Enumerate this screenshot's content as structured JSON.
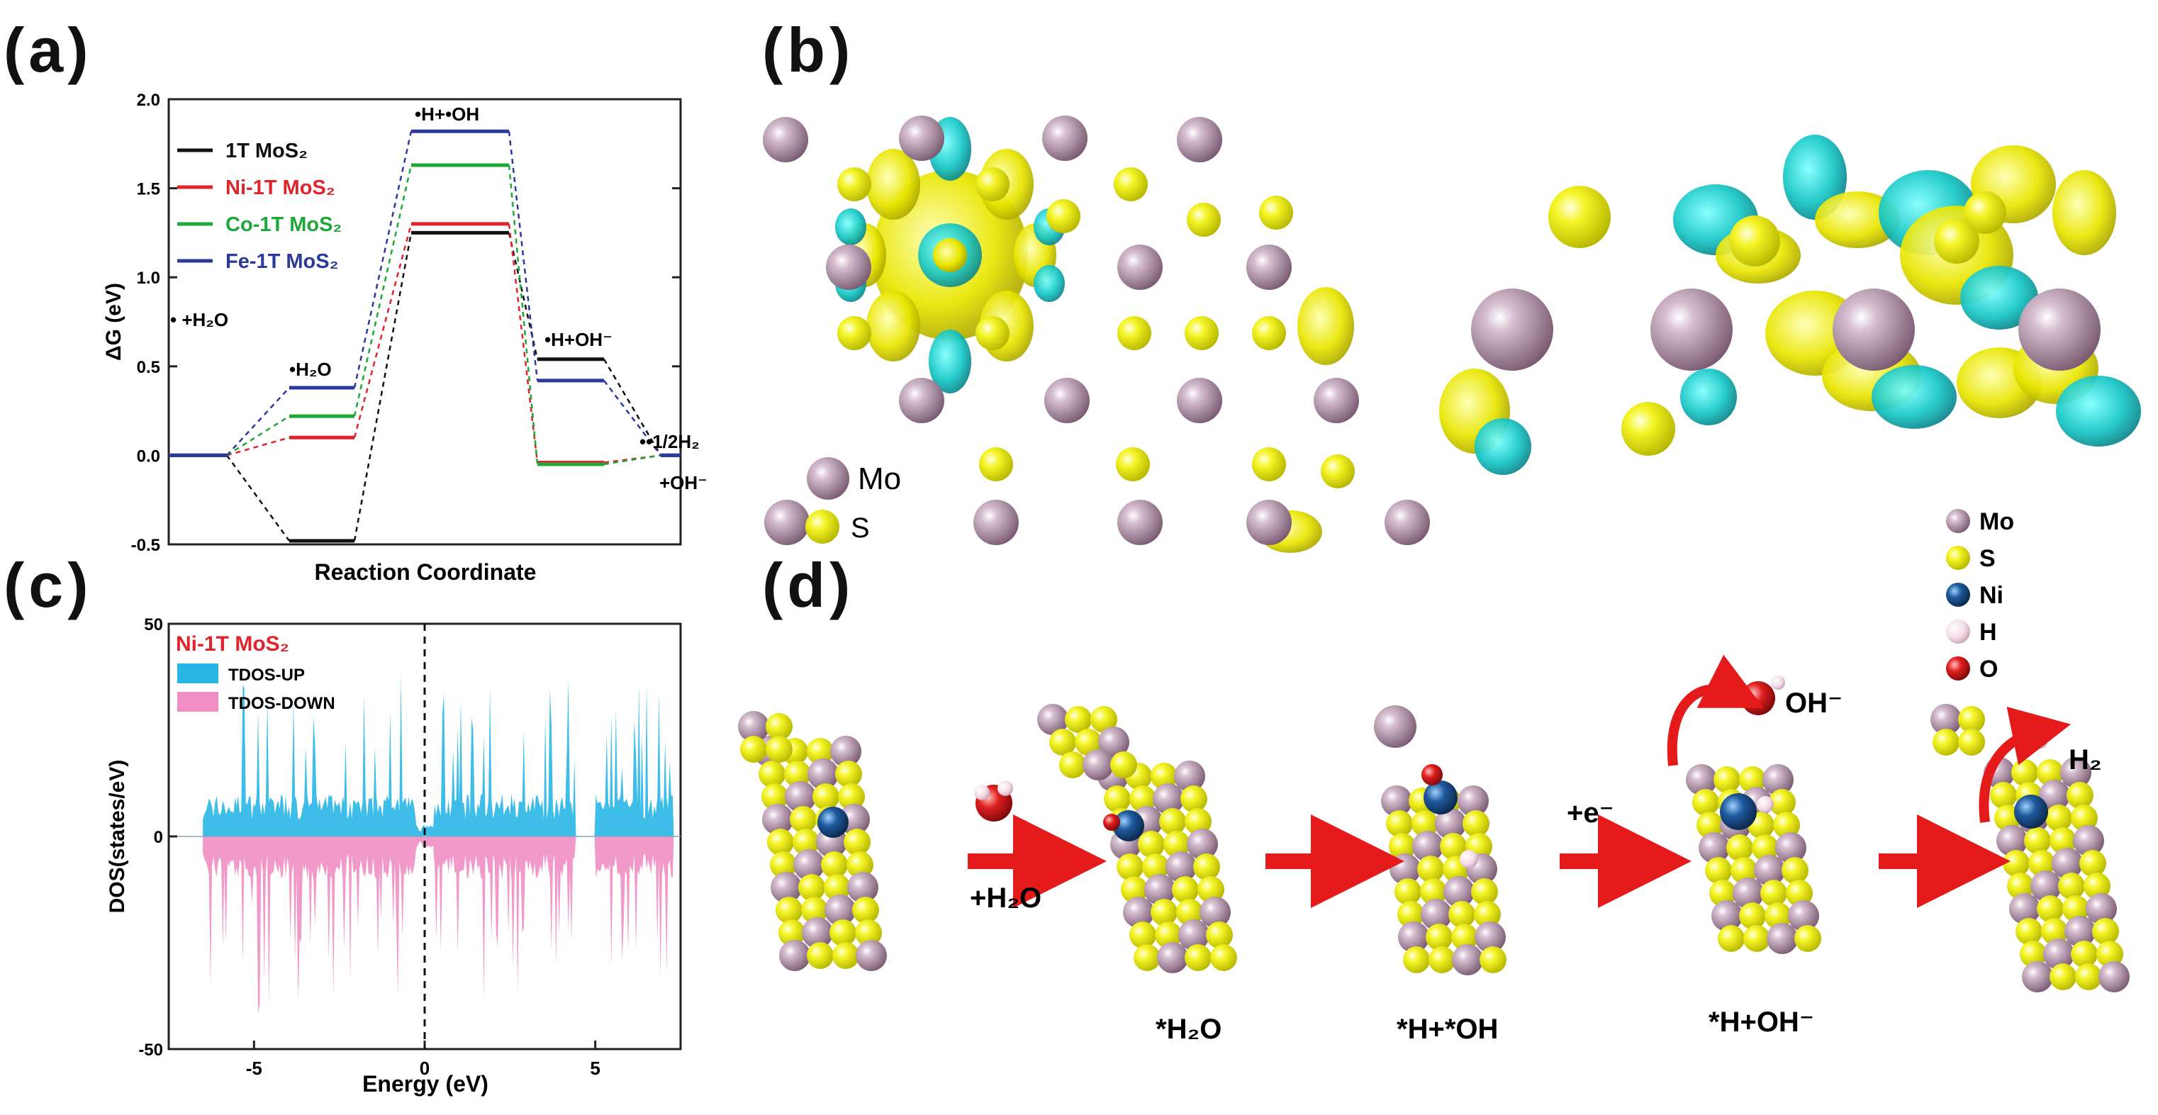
{
  "figure": {
    "panel_labels": [
      "(a)",
      "(b)",
      "(c)",
      "(d)"
    ]
  },
  "chart_data": [
    {
      "panel": "(a)",
      "type": "line",
      "xlabel": "Reaction Coordinate",
      "ylabel": "ΔG (eV)",
      "ylim": [
        -0.5,
        2.0
      ],
      "yticks": [
        "-0.5",
        "0.0",
        "0.5",
        "1.0",
        "1.5",
        "2.0"
      ],
      "steps": [
        "* +H2O",
        "*H2O",
        "*H+*OH",
        "*H+OH-",
        "*+1/2H2 +OH-"
      ],
      "step_labels": [
        {
          "text": "• +H₂O"
        },
        {
          "text": "•H₂O"
        },
        {
          "text": "•H+•OH"
        },
        {
          "text": "•H+OH⁻"
        },
        {
          "text": "••1/2H₂"
        },
        {
          "text": "+OH⁻"
        }
      ],
      "series": [
        {
          "name": "1T MoS₂",
          "color": "#111111",
          "values": [
            0.0,
            -0.48,
            1.25,
            0.54,
            0.0
          ]
        },
        {
          "name": "Ni-1T MoS₂",
          "color": "#e0242c",
          "values": [
            0.0,
            0.1,
            1.3,
            -0.04,
            0.0
          ]
        },
        {
          "name": "Co-1T MoS₂",
          "color": "#1ea83a",
          "values": [
            0.0,
            0.22,
            1.63,
            -0.05,
            0.0
          ]
        },
        {
          "name": "Fe-1T MoS₂",
          "color": "#2b3a9a",
          "values": [
            0.0,
            0.38,
            1.82,
            0.42,
            0.0
          ]
        }
      ],
      "legend_title_colors": [
        "#111111",
        "#e0242c",
        "#1ea83a",
        "#2b3a9a"
      ],
      "legend_placement": "top-left"
    },
    {
      "panel": "(c)",
      "type": "area",
      "title": "Ni-1T MoS₂",
      "title_color": "#e0242c",
      "xlabel": "Energy (eV)",
      "ylabel": "DOS(states/eV)",
      "xlim": [
        -7.5,
        7.5
      ],
      "ylim": [
        -50,
        50
      ],
      "xticks": [
        "-5",
        "0",
        "5"
      ],
      "yticks": [
        "50",
        "0",
        "-50"
      ],
      "fermi_level": 0,
      "series": [
        {
          "name": "TDOS-UP",
          "color": "#29b6e6"
        },
        {
          "name": "TDOS-DOWN",
          "color": "#f08fc3"
        }
      ],
      "legend_placement": "top-left"
    }
  ],
  "panel_b": {
    "legend": [
      {
        "label": "Mo",
        "color": "#a3809a"
      },
      {
        "label": "S",
        "color": "#f2f21e"
      }
    ]
  },
  "panel_d": {
    "legend": [
      {
        "label": "Mo",
        "color": "#a3809a"
      },
      {
        "label": "S",
        "color": "#f2f21e"
      },
      {
        "label": "Ni",
        "color": "#1f5a9e"
      },
      {
        "label": "H",
        "color": "#f3dce6"
      },
      {
        "label": "O",
        "color": "#e01f1f"
      }
    ],
    "arrow_labels": [
      "+H₂O",
      "+e⁻"
    ],
    "state_labels": [
      "*H₂O",
      "*H+*OH",
      "*H+OH⁻"
    ],
    "product_labels": [
      "OH⁻",
      "H₂"
    ]
  }
}
